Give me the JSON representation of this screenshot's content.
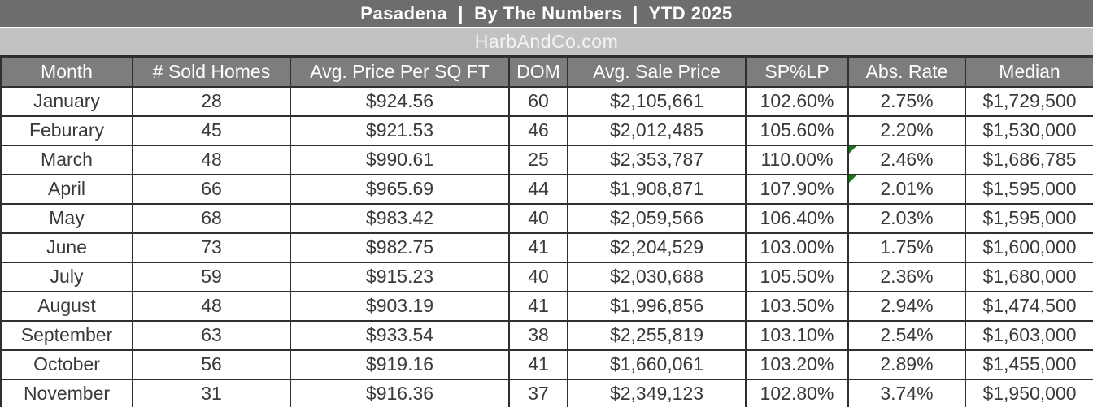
{
  "title_bar": {
    "title": "Pasadena  |  By The Numbers  |  YTD 2025"
  },
  "subtitle_bar": {
    "text": "HarbAndCo.com"
  },
  "chart_data": {
    "type": "table",
    "title": "Pasadena | By The Numbers | YTD 2025",
    "subtitle": "HarbAndCo.com",
    "columns": [
      "Month",
      "# Sold Homes",
      "Avg. Price Per SQ FT",
      "DOM",
      "Avg. Sale Price",
      "SP%LP",
      "Abs. Rate",
      "Median"
    ],
    "row_keys": [
      "month",
      "sold",
      "ppsf",
      "dom",
      "avg_sale",
      "sp_lp",
      "abs_rate",
      "median"
    ],
    "rows": [
      {
        "month": "January",
        "sold": "28",
        "ppsf": "$924.56",
        "dom": "60",
        "avg_sale": "$2,105,661",
        "sp_lp": "102.60%",
        "abs_rate": "2.75%",
        "median": "$1,729,500",
        "abs_rate_flag": false
      },
      {
        "month": "Feburary",
        "sold": "45",
        "ppsf": "$921.53",
        "dom": "46",
        "avg_sale": "$2,012,485",
        "sp_lp": "105.60%",
        "abs_rate": "2.20%",
        "median": "$1,530,000",
        "abs_rate_flag": false
      },
      {
        "month": "March",
        "sold": "48",
        "ppsf": "$990.61",
        "dom": "25",
        "avg_sale": "$2,353,787",
        "sp_lp": "110.00%",
        "abs_rate": "2.46%",
        "median": "$1,686,785",
        "abs_rate_flag": true
      },
      {
        "month": "April",
        "sold": "66",
        "ppsf": "$965.69",
        "dom": "44",
        "avg_sale": "$1,908,871",
        "sp_lp": "107.90%",
        "abs_rate": "2.01%",
        "median": "$1,595,000",
        "abs_rate_flag": true
      },
      {
        "month": "May",
        "sold": "68",
        "ppsf": "$983.42",
        "dom": "40",
        "avg_sale": "$2,059,566",
        "sp_lp": "106.40%",
        "abs_rate": "2.03%",
        "median": "$1,595,000",
        "abs_rate_flag": false
      },
      {
        "month": "June",
        "sold": "73",
        "ppsf": "$982.75",
        "dom": "41",
        "avg_sale": "$2,204,529",
        "sp_lp": "103.00%",
        "abs_rate": "1.75%",
        "median": "$1,600,000",
        "abs_rate_flag": false
      },
      {
        "month": "July",
        "sold": "59",
        "ppsf": "$915.23",
        "dom": "40",
        "avg_sale": "$2,030,688",
        "sp_lp": "105.50%",
        "abs_rate": "2.36%",
        "median": "$1,680,000",
        "abs_rate_flag": false
      },
      {
        "month": "August",
        "sold": "48",
        "ppsf": "$903.19",
        "dom": "41",
        "avg_sale": "$1,996,856",
        "sp_lp": "103.50%",
        "abs_rate": "2.94%",
        "median": "$1,474,500",
        "abs_rate_flag": false
      },
      {
        "month": "September",
        "sold": "63",
        "ppsf": "$933.54",
        "dom": "38",
        "avg_sale": "$2,255,819",
        "sp_lp": "103.10%",
        "abs_rate": "2.54%",
        "median": "$1,603,000",
        "abs_rate_flag": false
      },
      {
        "month": "October",
        "sold": "56",
        "ppsf": "$919.16",
        "dom": "41",
        "avg_sale": "$1,660,061",
        "sp_lp": "103.20%",
        "abs_rate": "2.89%",
        "median": "$1,455,000",
        "abs_rate_flag": false
      },
      {
        "month": "November",
        "sold": "31",
        "ppsf": "$916.36",
        "dom": "37",
        "avg_sale": "$2,349,123",
        "sp_lp": "102.80%",
        "abs_rate": "3.74%",
        "median": "$1,950,000",
        "abs_rate_flag": false
      }
    ],
    "flagged_cells_note": "green error-indicator triangle in top-left of Abs. Rate cell for March and April"
  },
  "colors": {
    "title_bar_bg": "#6d6d6d",
    "subtitle_bar_bg": "#c2c2c2",
    "header_bg": "#7d7d7d",
    "border": "#2f2f2f",
    "data_text": "#3a3a3a",
    "header_text": "#ffffff",
    "error_indicator_green": "#157a15"
  }
}
